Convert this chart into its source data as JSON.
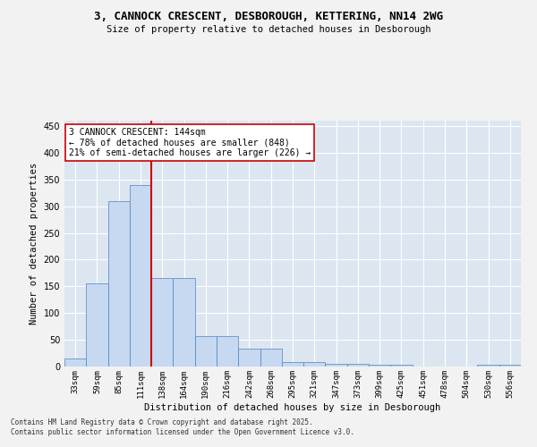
{
  "title1": "3, CANNOCK CRESCENT, DESBOROUGH, KETTERING, NN14 2WG",
  "title2": "Size of property relative to detached houses in Desborough",
  "xlabel": "Distribution of detached houses by size in Desborough",
  "ylabel": "Number of detached properties",
  "categories": [
    "33sqm",
    "59sqm",
    "85sqm",
    "111sqm",
    "138sqm",
    "164sqm",
    "190sqm",
    "216sqm",
    "242sqm",
    "268sqm",
    "295sqm",
    "321sqm",
    "347sqm",
    "373sqm",
    "399sqm",
    "425sqm",
    "451sqm",
    "478sqm",
    "504sqm",
    "530sqm",
    "556sqm"
  ],
  "values": [
    15,
    155,
    310,
    340,
    165,
    165,
    57,
    57,
    33,
    33,
    9,
    8,
    5,
    5,
    3,
    3,
    0,
    0,
    0,
    3,
    3
  ],
  "bar_color": "#c6d9f1",
  "bar_edge_color": "#4f81bd",
  "vline_x": 3.5,
  "vline_color": "#cc0000",
  "ylim": [
    0,
    460
  ],
  "yticks": [
    0,
    50,
    100,
    150,
    200,
    250,
    300,
    350,
    400,
    450
  ],
  "annotation_title": "3 CANNOCK CRESCENT: 144sqm",
  "annotation_line1": "← 78% of detached houses are smaller (848)",
  "annotation_line2": "21% of semi-detached houses are larger (226) →",
  "annotation_box_color": "white",
  "annotation_box_edgecolor": "#cc0000",
  "plot_bg_color": "#dce6f1",
  "fig_bg_color": "#f2f2f2",
  "footer1": "Contains HM Land Registry data © Crown copyright and database right 2025.",
  "footer2": "Contains public sector information licensed under the Open Government Licence v3.0."
}
